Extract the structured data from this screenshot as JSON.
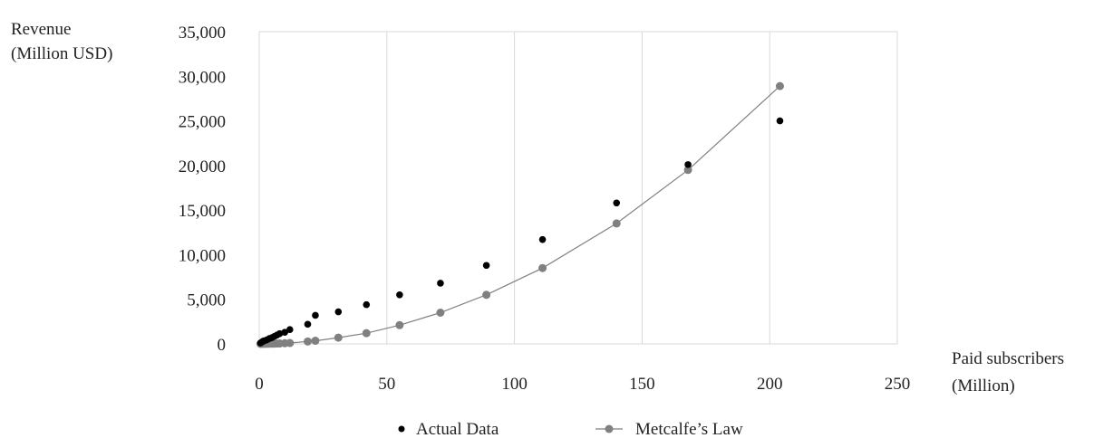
{
  "chart_data": {
    "type": "scatter",
    "ylabel": [
      "Revenue",
      "(Million USD)"
    ],
    "xlabel": [
      "Paid subscribers",
      "(Million)"
    ],
    "xlim": [
      0,
      250
    ],
    "ylim": [
      0,
      35000
    ],
    "x_ticks": [
      0,
      50,
      100,
      150,
      200,
      250
    ],
    "x_tick_labels": [
      "0",
      "50",
      "100",
      "150",
      "200",
      "250"
    ],
    "y_ticks": [
      0,
      5000,
      10000,
      15000,
      20000,
      25000,
      30000,
      35000
    ],
    "y_tick_labels": [
      "0",
      "5,000",
      "10,000",
      "15,000",
      "20,000",
      "25,000",
      "30,000",
      "35,000"
    ],
    "grid": "vertical",
    "legend_position": "bottom",
    "series": [
      {
        "name": "Actual Data",
        "style": "markers",
        "color": "#000000",
        "x": [
          0.5,
          1,
          1.5,
          2,
          3,
          4,
          5,
          6,
          7,
          8,
          10,
          12,
          19,
          22,
          31,
          42,
          55,
          71,
          89,
          111,
          140,
          168,
          204
        ],
        "y": [
          100,
          200,
          300,
          350,
          450,
          600,
          700,
          850,
          1000,
          1150,
          1300,
          1600,
          2200,
          3200,
          3600,
          4400,
          5500,
          6800,
          8800,
          11700,
          15800,
          20100,
          25000
        ]
      },
      {
        "name": "Metcalfe’s Law",
        "style": "line-markers",
        "color": "#808080",
        "x": [
          0.5,
          1,
          2,
          3,
          4,
          5,
          6,
          7,
          8,
          10,
          12,
          19,
          22,
          31,
          42,
          55,
          71,
          89,
          111,
          140,
          168,
          204
        ],
        "y": [
          0,
          0,
          0,
          10,
          20,
          20,
          30,
          40,
          50,
          70,
          100,
          270,
          350,
          700,
          1200,
          2100,
          3500,
          5500,
          8500,
          13500,
          19500,
          28900
        ]
      }
    ]
  }
}
